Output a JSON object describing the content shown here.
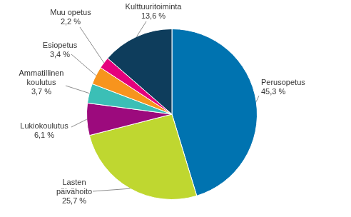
{
  "chart_data": {
    "type": "pie",
    "categories": [
      "Perusopetus",
      "Lasten päivähoito",
      "Lukiokoulutus",
      "Ammatillinen koulutus",
      "Esiopetus",
      "Muu opetus",
      "Kulttuuritoiminta"
    ],
    "values": [
      45.3,
      25.7,
      6.1,
      3.7,
      3.4,
      2.2,
      13.6
    ],
    "value_labels": [
      "45,3 %",
      "25,7 %",
      "6,1 %",
      "3,7 %",
      "3,4 %",
      "2,2 %",
      "13,6 %"
    ],
    "colors": [
      "#0073b0",
      "#bfd730",
      "#9c0a7d",
      "#3bbfb6",
      "#f7941d",
      "#e5007d",
      "#0e3d5c"
    ],
    "data_labels": true
  }
}
